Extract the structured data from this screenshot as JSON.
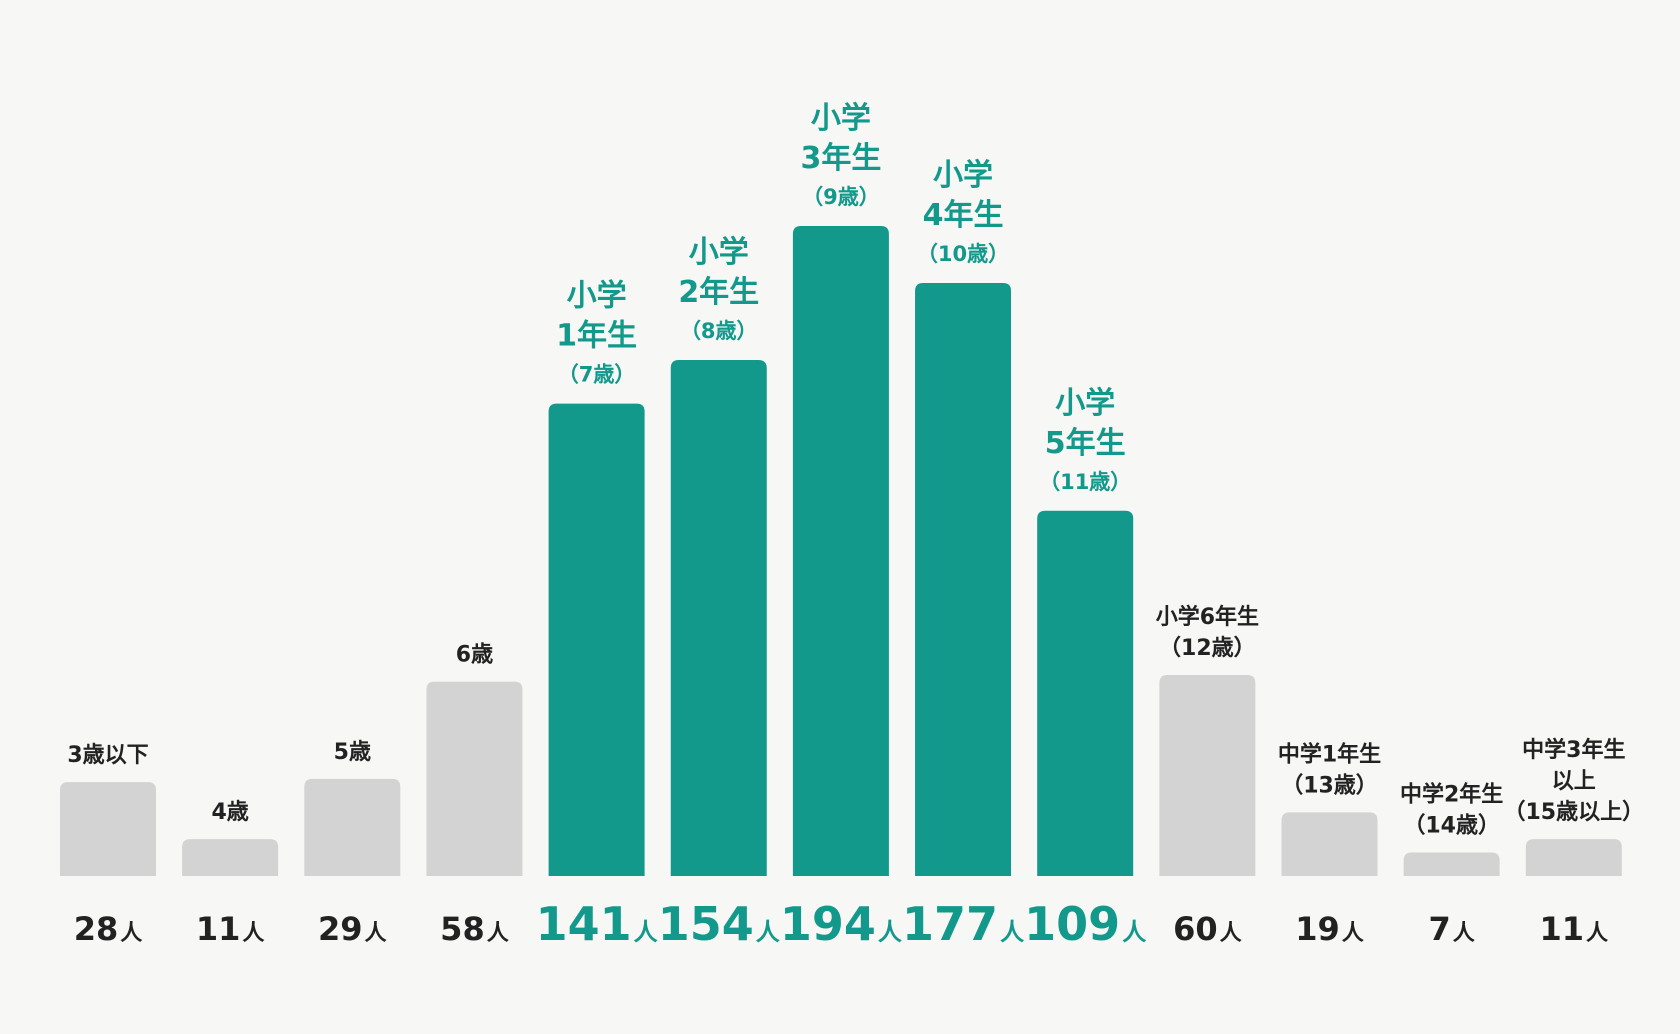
{
  "colors": {
    "highlight": "#12998b",
    "plain": "#d3d3d3",
    "text": "#222222",
    "background": "#f7f7f5"
  },
  "chart_data": {
    "type": "bar",
    "unit": "人",
    "categories": [
      {
        "label": [
          "3歳以下"
        ],
        "value": 28,
        "highlight": false
      },
      {
        "label": [
          "4歳"
        ],
        "value": 11,
        "highlight": false
      },
      {
        "label": [
          "5歳"
        ],
        "value": 29,
        "highlight": false
      },
      {
        "label": [
          "6歳"
        ],
        "value": 58,
        "highlight": false
      },
      {
        "label": [
          "小学",
          "1年生",
          "（7歳）"
        ],
        "value": 141,
        "highlight": true
      },
      {
        "label": [
          "小学",
          "2年生",
          "（8歳）"
        ],
        "value": 154,
        "highlight": true
      },
      {
        "label": [
          "小学",
          "3年生",
          "（9歳）"
        ],
        "value": 194,
        "highlight": true
      },
      {
        "label": [
          "小学",
          "4年生",
          "（10歳）"
        ],
        "value": 177,
        "highlight": true
      },
      {
        "label": [
          "小学",
          "5年生",
          "（11歳）"
        ],
        "value": 109,
        "highlight": true
      },
      {
        "label": [
          "小学6年生",
          "（12歳）"
        ],
        "value": 60,
        "highlight": false
      },
      {
        "label": [
          "中学1年生",
          "（13歳）"
        ],
        "value": 19,
        "highlight": false
      },
      {
        "label": [
          "中学2年生",
          "（14歳）"
        ],
        "value": 7,
        "highlight": false
      },
      {
        "label": [
          "中学3年生",
          "以上",
          "（15歳以上）"
        ],
        "value": 11,
        "highlight": false
      }
    ],
    "ylim": [
      0,
      194
    ],
    "grid": false,
    "legend": "none"
  }
}
